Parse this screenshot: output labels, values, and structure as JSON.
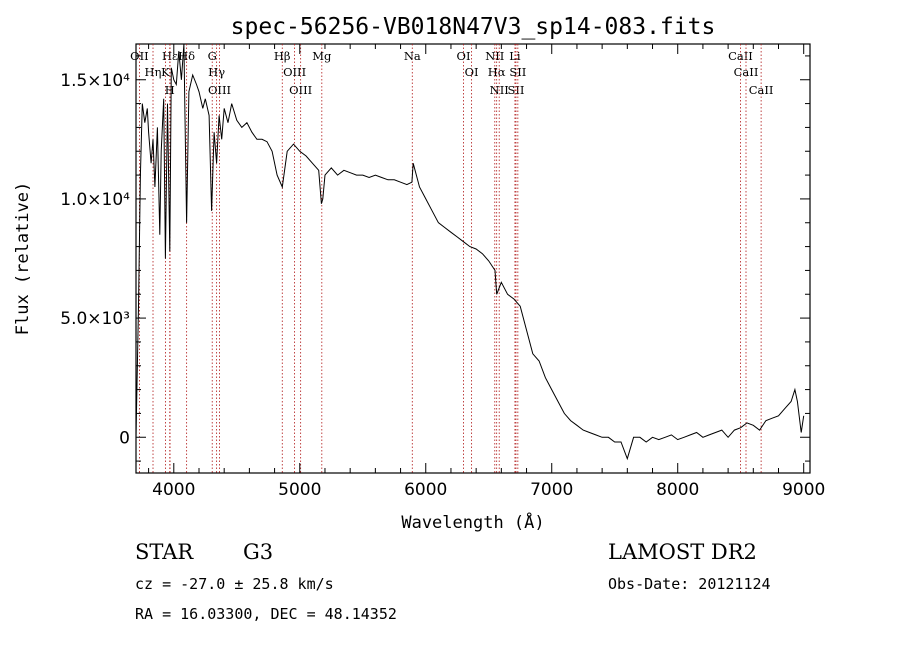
{
  "chart_data": {
    "type": "line",
    "title": "spec-56256-VB018N47V3_sp14-083.fits",
    "xlabel": "Wavelength (Å)",
    "ylabel": "Flux (relative)",
    "xlim": [
      3700,
      9050
    ],
    "ylim": [
      -1500,
      16500
    ],
    "x_ticks": [
      {
        "value": 4000,
        "label": "4000"
      },
      {
        "value": 5000,
        "label": "5000"
      },
      {
        "value": 6000,
        "label": "6000"
      },
      {
        "value": 7000,
        "label": "7000"
      },
      {
        "value": 8000,
        "label": "8000"
      },
      {
        "value": 9000,
        "label": "9000"
      }
    ],
    "y_ticks": [
      {
        "value": 0,
        "label": "0"
      },
      {
        "value": 5000,
        "label": "5.0×10³"
      },
      {
        "value": 10000,
        "label": "1.0×10⁴"
      },
      {
        "value": 15000,
        "label": "1.5×10⁴"
      }
    ],
    "series": [
      {
        "x": [
          3700,
          3720,
          3735,
          3750,
          3770,
          3790,
          3800,
          3820,
          3835,
          3850,
          3870,
          3889,
          3900,
          3920,
          3933,
          3950,
          3968,
          3980,
          4000,
          4020,
          4040,
          4060,
          4080,
          4102,
          4120,
          4150,
          4180,
          4200,
          4230,
          4250,
          4280,
          4300,
          4320,
          4340,
          4360,
          4380,
          4400,
          4430,
          4460,
          4500,
          4540,
          4580,
          4620,
          4660,
          4700,
          4740,
          4780,
          4820,
          4861,
          4900,
          4950,
          5000,
          5050,
          5100,
          5150,
          5172,
          5183,
          5200,
          5250,
          5300,
          5350,
          5400,
          5450,
          5500,
          5550,
          5600,
          5650,
          5700,
          5750,
          5800,
          5850,
          5890,
          5900,
          5950,
          6000,
          6050,
          6100,
          6150,
          6200,
          6250,
          6300,
          6350,
          6400,
          6450,
          6500,
          6550,
          6563,
          6600,
          6650,
          6700,
          6750,
          6800,
          6850,
          6900,
          6950,
          7000,
          7050,
          7100,
          7150,
          7200,
          7250,
          7300,
          7350,
          7400,
          7450,
          7500,
          7550,
          7600,
          7650,
          7700,
          7750,
          7800,
          7850,
          7900,
          7950,
          8000,
          8050,
          8100,
          8150,
          8200,
          8250,
          8300,
          8350,
          8400,
          8450,
          8500,
          8550,
          8600,
          8650,
          8700,
          8750,
          8800,
          8850,
          8900,
          8930,
          8950,
          8980,
          9000
        ],
        "y": [
          0,
          5500,
          11000,
          14000,
          13200,
          13800,
          12800,
          11500,
          12500,
          10500,
          13000,
          8500,
          12000,
          14200,
          7500,
          14000,
          7800,
          15500,
          15000,
          14800,
          16200,
          15000,
          16500,
          9000,
          14500,
          15200,
          14800,
          14500,
          13800,
          14200,
          13500,
          9500,
          12800,
          11500,
          13500,
          12500,
          13800,
          13200,
          14000,
          13300,
          13000,
          13200,
          12800,
          12500,
          12500,
          12400,
          12000,
          11000,
          10500,
          12000,
          12300,
          12000,
          11800,
          11500,
          11200,
          9800,
          10000,
          11000,
          11300,
          11000,
          11200,
          11100,
          11000,
          11000,
          10900,
          11000,
          10900,
          10800,
          10800,
          10700,
          10600,
          10700,
          11500,
          10500,
          10000,
          9500,
          9000,
          8800,
          8600,
          8400,
          8200,
          8000,
          7900,
          7700,
          7400,
          7000,
          6000,
          6500,
          6000,
          5800,
          5500,
          4500,
          3500,
          3200,
          2500,
          2000,
          1500,
          1000,
          700,
          500,
          300,
          200,
          100,
          0,
          0,
          -200,
          -200,
          -900,
          0,
          0,
          -200,
          0,
          -100,
          0,
          100,
          -100,
          0,
          100,
          200,
          0,
          100,
          200,
          300,
          0,
          300,
          400,
          600,
          500,
          300,
          700,
          800,
          900,
          1200,
          1500,
          2000,
          1500,
          200,
          900
        ]
      }
    ],
    "spectral_lines": [
      {
        "name": "OII",
        "x": 3727
      },
      {
        "name": "Hη",
        "x": 3835
      },
      {
        "name": "Hε",
        "x": 3970
      },
      {
        "name": "K",
        "x": 3934
      },
      {
        "name": "H",
        "x": 3968
      },
      {
        "name": "Hδ",
        "x": 4102
      },
      {
        "name": "G",
        "x": 4305
      },
      {
        "name": "Hγ",
        "x": 4340
      },
      {
        "name": "OIII",
        "x": 4363
      },
      {
        "name": "Hβ",
        "x": 4861
      },
      {
        "name": "OIII",
        "x": 4959
      },
      {
        "name": "OIII",
        "x": 5007
      },
      {
        "name": "Mg",
        "x": 5175
      },
      {
        "name": "Na",
        "x": 5893
      },
      {
        "name": "OI",
        "x": 6300
      },
      {
        "name": "OI",
        "x": 6364
      },
      {
        "name": "NII",
        "x": 6548
      },
      {
        "name": "Hα",
        "x": 6563
      },
      {
        "name": "NII",
        "x": 6583
      },
      {
        "name": "Li",
        "x": 6708
      },
      {
        "name": "SII",
        "x": 6716
      },
      {
        "name": "SII",
        "x": 6731
      },
      {
        "name": "CaII",
        "x": 8498
      },
      {
        "name": "CaII",
        "x": 8542
      },
      {
        "name": "CaII",
        "x": 8662
      }
    ],
    "grid": false,
    "legend": "none"
  },
  "info": {
    "object_class": "STAR",
    "subclass": "G3",
    "survey": "LAMOST DR2",
    "redshift_text": "cz = -27.0 ± 25.8 km/s",
    "obs_date": "Obs-Date: 20121124",
    "coords": "RA =  16.03300, DEC =  48.14352"
  }
}
